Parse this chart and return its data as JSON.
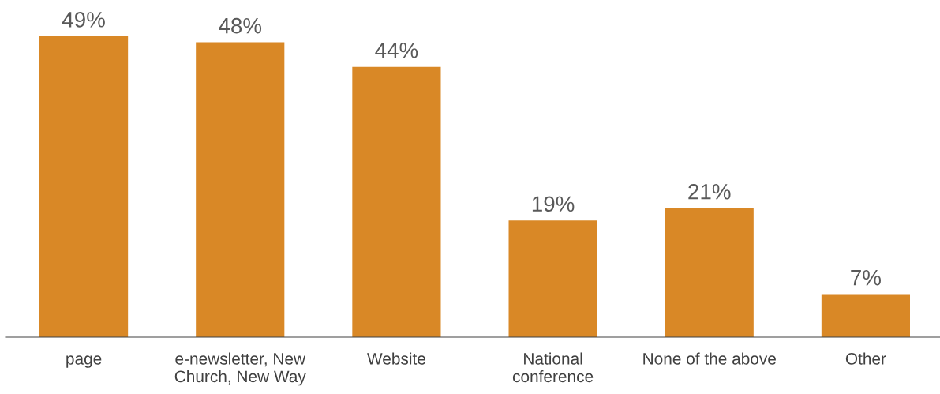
{
  "chart_data": {
    "type": "bar",
    "categories": [
      "page",
      "e-newsletter, New\nChurch, New Way",
      "Website",
      "National\nconference",
      "None of the above",
      "Other"
    ],
    "values": [
      49,
      48,
      44,
      19,
      21,
      7
    ],
    "value_labels": [
      "49%",
      "48%",
      "44%",
      "19%",
      "21%",
      "7%"
    ],
    "color": "#d98826"
  }
}
